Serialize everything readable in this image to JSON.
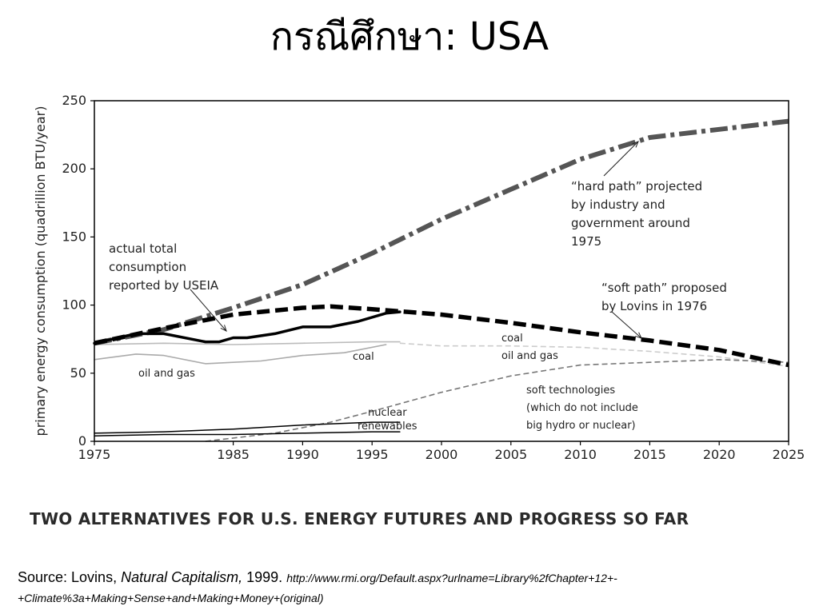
{
  "slide": {
    "title": "กรณีศึกษา: USA",
    "caption": "TWO ALTERNATIVES FOR U.S. ENERGY FUTURES AND PROGRESS SO FAR",
    "source": {
      "prefix": "Source: Lovins, ",
      "book": "Natural Capitalism,",
      "year": " 1999. ",
      "url": "http://www.rmi.org/Default.aspx?urlname=Library%2fChapter+12+-+Climate%3a+Making+Sense+and+Making+Money+(original)"
    }
  },
  "chart_data": {
    "type": "line",
    "title": "",
    "xlabel": "",
    "ylabel": "primary energy consumption (quadrillion BTU/year)",
    "xlim": [
      1975,
      2025
    ],
    "ylim": [
      0,
      250
    ],
    "x_ticks": [
      "1975",
      "1985",
      "1990",
      "1995",
      "2000",
      "2005",
      "2010",
      "2015",
      "2020",
      "2025"
    ],
    "y_ticks": [
      "0",
      "50",
      "100",
      "150",
      "200",
      "250"
    ],
    "grid": false,
    "series": [
      {
        "key": "hard",
        "style": "dash-dot",
        "color": "#555555",
        "points": [
          [
            1975,
            72
          ],
          [
            1980,
            82
          ],
          [
            1985,
            98
          ],
          [
            1990,
            115
          ],
          [
            1995,
            138
          ],
          [
            2000,
            163
          ],
          [
            2005,
            185
          ],
          [
            2010,
            207
          ],
          [
            2015,
            223
          ],
          [
            2020,
            229
          ],
          [
            2025,
            235
          ]
        ]
      },
      {
        "key": "soft",
        "style": "dashed",
        "color": "#000000",
        "points": [
          [
            1975,
            72
          ],
          [
            1980,
            83
          ],
          [
            1985,
            93
          ],
          [
            1990,
            98
          ],
          [
            1992,
            99
          ],
          [
            1995,
            97
          ],
          [
            2000,
            93
          ],
          [
            2005,
            87
          ],
          [
            2010,
            80
          ],
          [
            2015,
            74
          ],
          [
            2020,
            67
          ],
          [
            2025,
            56
          ]
        ]
      },
      {
        "key": "actual",
        "style": "solid",
        "color": "#000000",
        "points": [
          [
            1975,
            72
          ],
          [
            1978,
            79
          ],
          [
            1980,
            79
          ],
          [
            1982,
            75
          ],
          [
            1983,
            73
          ],
          [
            1984,
            73
          ],
          [
            1985,
            76
          ],
          [
            1986,
            76
          ],
          [
            1988,
            79
          ],
          [
            1990,
            84
          ],
          [
            1992,
            84
          ],
          [
            1994,
            88
          ],
          [
            1996,
            94
          ],
          [
            1997,
            95
          ]
        ]
      },
      {
        "key": "actual_coal",
        "style": "solid",
        "color": "#bbbbbb",
        "points": [
          [
            1975,
            71
          ],
          [
            1980,
            72
          ],
          [
            1985,
            71
          ],
          [
            1990,
            72
          ],
          [
            1995,
            73
          ],
          [
            1997,
            73
          ]
        ]
      },
      {
        "key": "actual_oil_gas",
        "style": "solid",
        "color": "#aaaaaa",
        "points": [
          [
            1975,
            60
          ],
          [
            1978,
            64
          ],
          [
            1980,
            63
          ],
          [
            1983,
            57
          ],
          [
            1985,
            58
          ],
          [
            1987,
            59
          ],
          [
            1990,
            63
          ],
          [
            1993,
            65
          ],
          [
            1996,
            71
          ]
        ]
      },
      {
        "key": "soft_coal_oil_gas",
        "style": "dashed-thin",
        "color": "#cccccc",
        "points": [
          [
            1997,
            72
          ],
          [
            2000,
            70
          ],
          [
            2005,
            70
          ],
          [
            2010,
            69
          ],
          [
            2015,
            66
          ],
          [
            2020,
            62
          ],
          [
            2025,
            55
          ]
        ]
      },
      {
        "key": "soft_technologies",
        "style": "dashed-thin",
        "color": "#777777",
        "points": [
          [
            1983,
            0
          ],
          [
            1988,
            6
          ],
          [
            1992,
            14
          ],
          [
            1995,
            22
          ],
          [
            2000,
            36
          ],
          [
            2005,
            48
          ],
          [
            2010,
            56
          ],
          [
            2015,
            58
          ],
          [
            2020,
            60
          ],
          [
            2025,
            58
          ]
        ]
      },
      {
        "key": "nuclear",
        "style": "solid",
        "color": "#000000",
        "points": [
          [
            1975,
            6
          ],
          [
            1980,
            7
          ],
          [
            1985,
            9
          ],
          [
            1990,
            12
          ],
          [
            1995,
            14
          ],
          [
            1997,
            14
          ]
        ]
      },
      {
        "key": "renewables",
        "style": "solid",
        "color": "#000000",
        "points": [
          [
            1975,
            4
          ],
          [
            1980,
            5
          ],
          [
            1985,
            5
          ],
          [
            1990,
            6
          ],
          [
            1995,
            7
          ],
          [
            1997,
            7
          ]
        ]
      }
    ],
    "annotations": {
      "hard_path": [
        "“hard path” projected",
        "by industry and",
        "government around",
        "1975"
      ],
      "soft_path": [
        "“soft path” proposed",
        "by Lovins in 1976"
      ],
      "actual": [
        "actual total",
        "consumption",
        "reported by USEIA"
      ],
      "coal": "coal",
      "oil_gas": "oil and gas",
      "soft_coal": "coal",
      "soft_oil_gas": "oil and gas",
      "soft_tech": [
        "soft technologies",
        "(which do not include",
        "big hydro or nuclear)"
      ],
      "nuclear": "nuclear",
      "renewables": "renewables"
    }
  }
}
